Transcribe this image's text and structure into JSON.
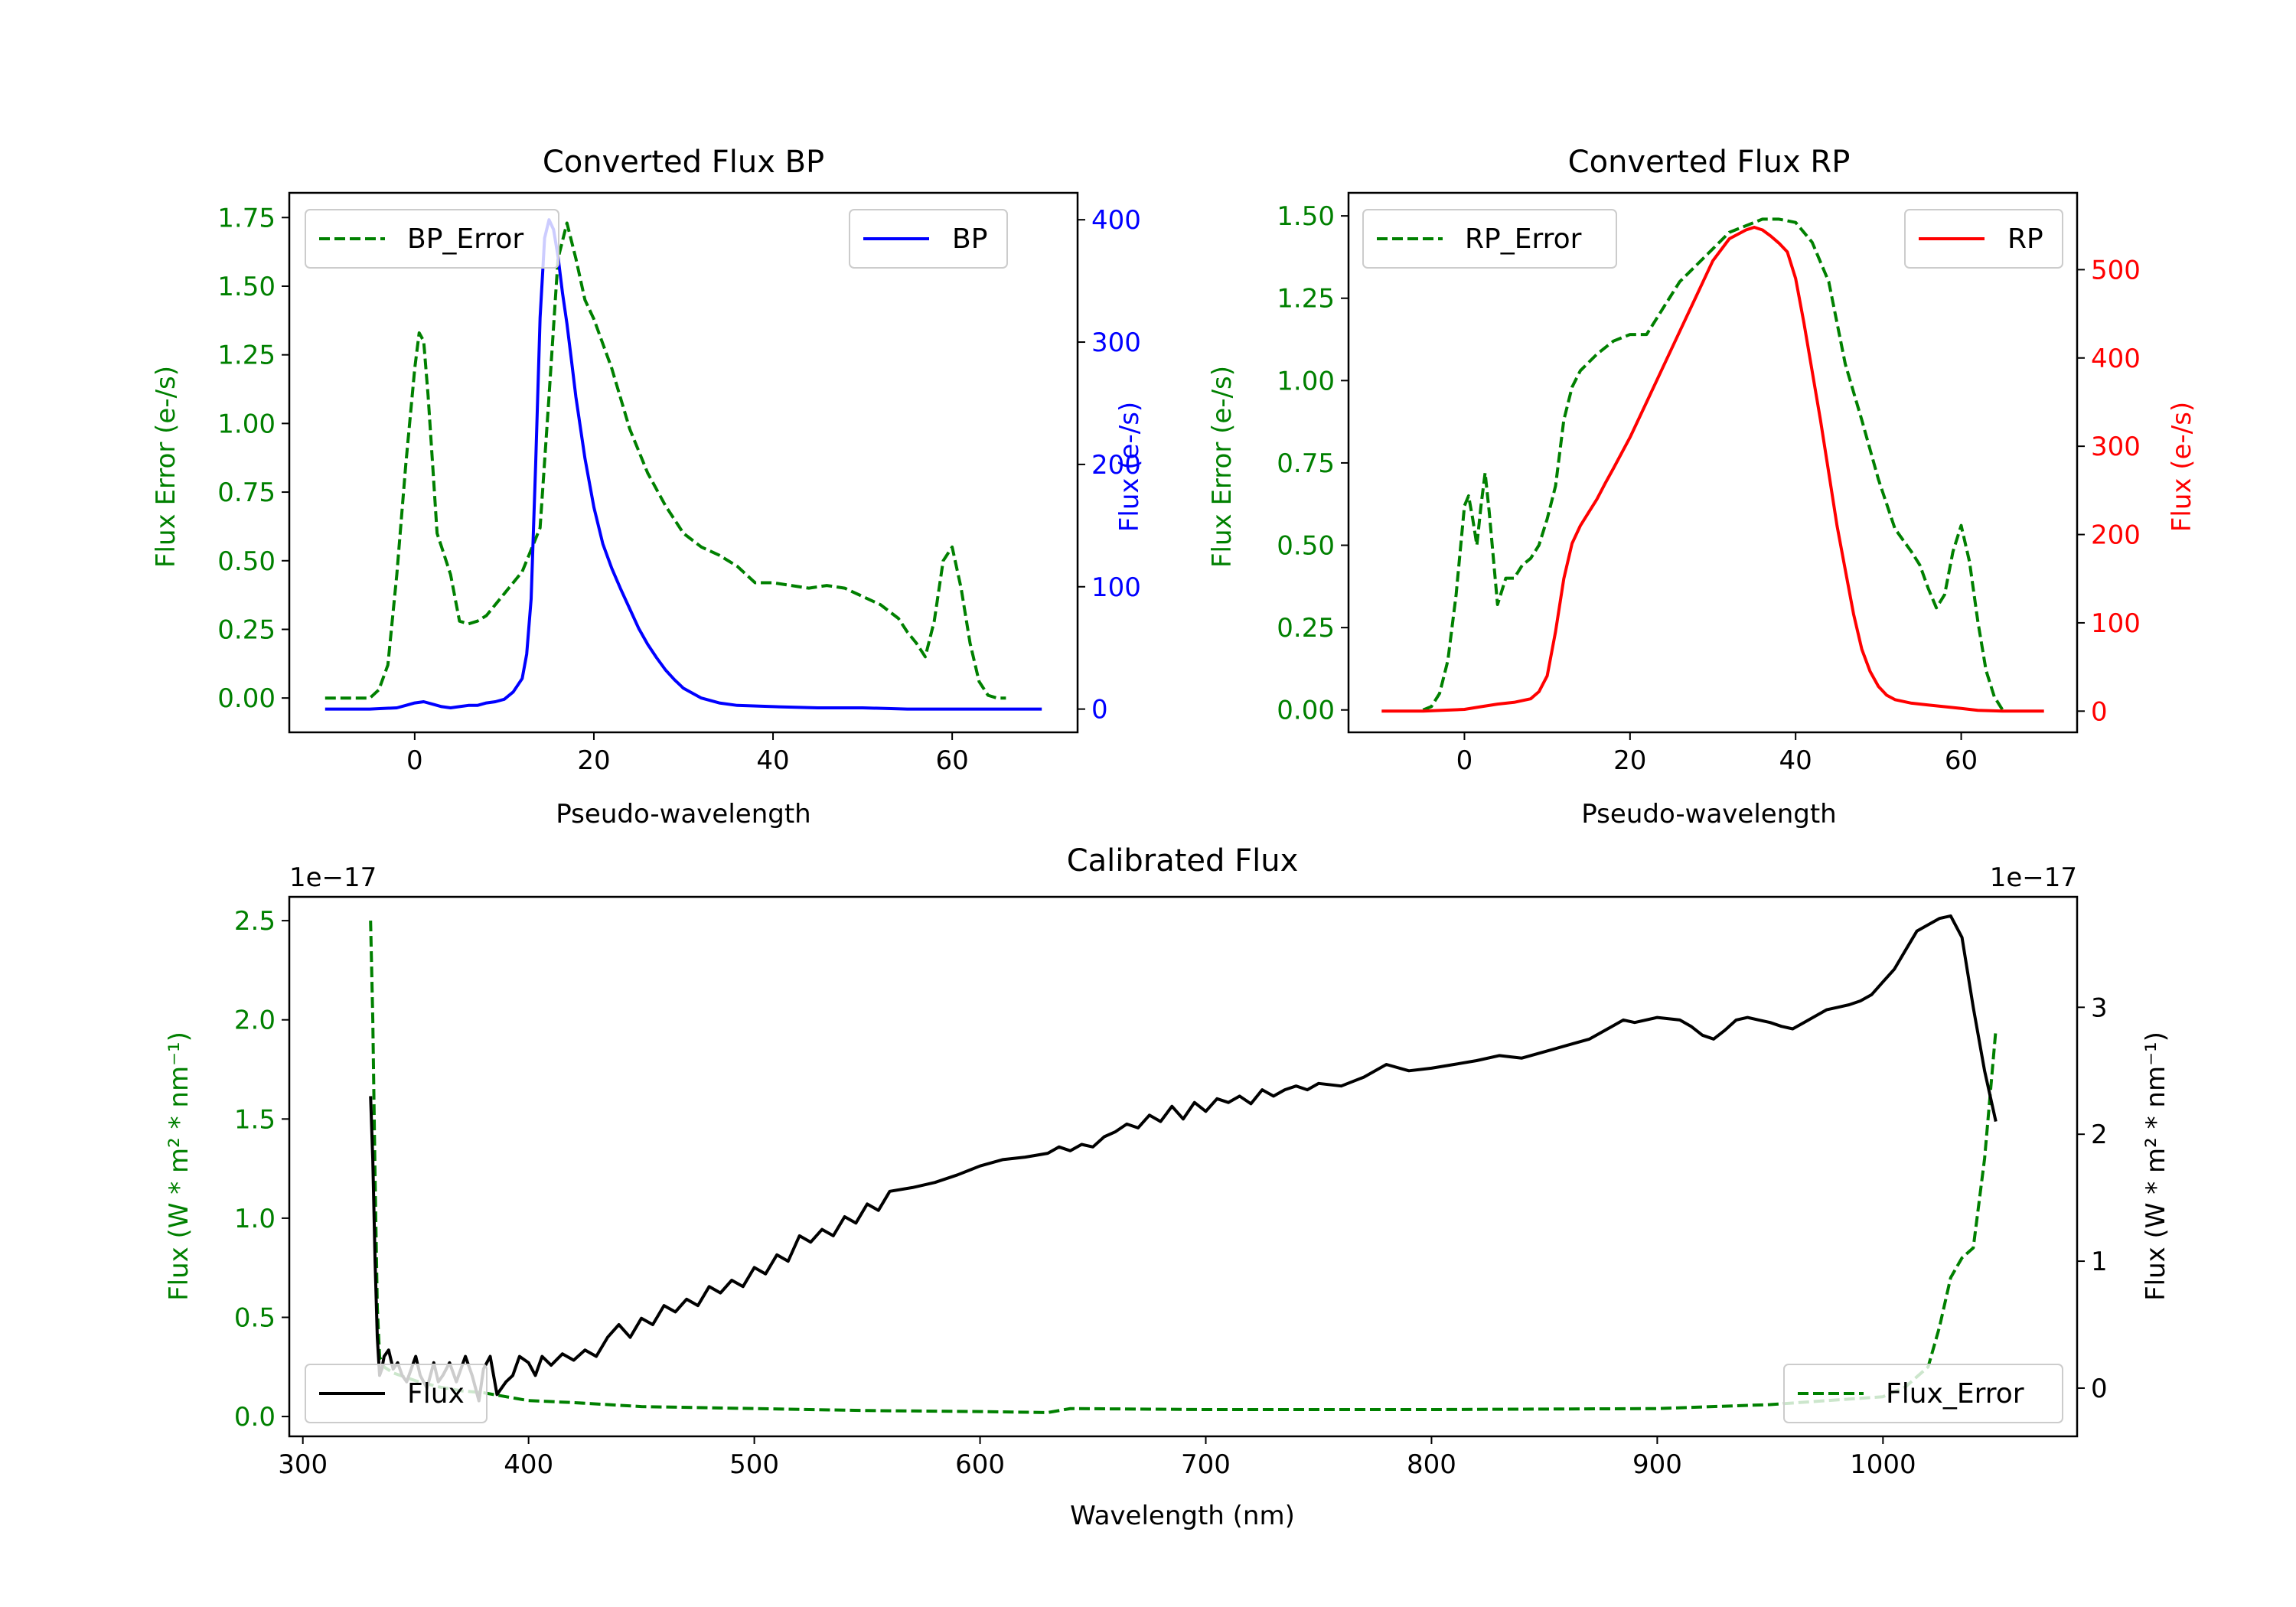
{
  "colors": {
    "green": "#008000",
    "blue": "#0000ff",
    "red": "#ff0000",
    "black": "#000000",
    "axes": "#000000"
  },
  "chart_data": [
    {
      "id": "bp",
      "type": "line",
      "title": "Converted Flux BP",
      "xlabel": "Pseudo-wavelength",
      "ylabel_left": "Flux Error (e-/s)",
      "ylabel_right": "Flux (e-/s)",
      "xlim": [
        -14,
        74
      ],
      "ylim_left": [
        -0.125,
        1.84
      ],
      "ylim_right": [
        -19,
        422
      ],
      "xticks": [
        0,
        20,
        40,
        60
      ],
      "xtick_labels": [
        "0",
        "20",
        "40",
        "60"
      ],
      "yticks_left": [
        0,
        0.25,
        0.5,
        0.75,
        1.0,
        1.25,
        1.5,
        1.75
      ],
      "ytick_labels_left": [
        "0.00",
        "0.25",
        "0.50",
        "0.75",
        "1.00",
        "1.25",
        "1.50",
        "1.75"
      ],
      "yticks_right": [
        0,
        100,
        200,
        300,
        400
      ],
      "ytick_labels_right": [
        "0",
        "100",
        "200",
        "300",
        "400"
      ],
      "legend_left": {
        "label": "BP_Error",
        "placement": "upper left"
      },
      "legend_right": {
        "label": "BP",
        "placement": "upper right"
      },
      "series": [
        {
          "name": "BP_Error",
          "axis": "left",
          "style": "dashed",
          "color": "#008000",
          "x": [
            -10,
            -5,
            -4,
            -3,
            -2,
            -1,
            0,
            0.5,
            1,
            1.5,
            2,
            2.5,
            3,
            4,
            5,
            6,
            7,
            8,
            10,
            12,
            14,
            15,
            16,
            17,
            18,
            19,
            20,
            22,
            24,
            26,
            28,
            30,
            32,
            34,
            36,
            38,
            40,
            42,
            44,
            46,
            48,
            50,
            52,
            54,
            55,
            56,
            57,
            58,
            59,
            60,
            61,
            62,
            63,
            64,
            65,
            66
          ],
          "y": [
            0.0,
            0.0,
            0.03,
            0.12,
            0.45,
            0.85,
            1.2,
            1.33,
            1.3,
            1.1,
            0.85,
            0.6,
            0.55,
            0.45,
            0.28,
            0.27,
            0.28,
            0.3,
            0.38,
            0.46,
            0.62,
            1.1,
            1.6,
            1.73,
            1.6,
            1.45,
            1.38,
            1.2,
            0.98,
            0.82,
            0.7,
            0.6,
            0.55,
            0.52,
            0.48,
            0.42,
            0.42,
            0.41,
            0.4,
            0.41,
            0.4,
            0.37,
            0.34,
            0.29,
            0.24,
            0.2,
            0.15,
            0.28,
            0.5,
            0.55,
            0.4,
            0.2,
            0.06,
            0.01,
            0.0,
            0.0
          ]
        },
        {
          "name": "BP",
          "axis": "right",
          "style": "solid",
          "color": "#0000ff",
          "x": [
            -10,
            -5,
            -2,
            -1,
            0,
            1,
            2,
            3,
            4,
            5,
            6,
            7,
            8,
            9,
            10,
            11,
            12,
            12.5,
            13,
            13.5,
            14,
            14.5,
            15,
            15.5,
            16,
            16.5,
            17,
            17.5,
            18,
            19,
            20,
            21,
            22,
            23,
            24,
            25,
            26,
            27,
            28,
            29,
            30,
            32,
            34,
            36,
            40,
            45,
            50,
            55,
            60,
            65,
            70
          ],
          "y": [
            0,
            0,
            1,
            3,
            5,
            6,
            4,
            2,
            1,
            2,
            3,
            3,
            5,
            6,
            8,
            14,
            25,
            45,
            90,
            200,
            320,
            385,
            400,
            392,
            370,
            340,
            315,
            285,
            255,
            205,
            165,
            135,
            115,
            98,
            82,
            66,
            53,
            42,
            32,
            24,
            17,
            9,
            5,
            3,
            2,
            1,
            1,
            0,
            0,
            0,
            0
          ]
        }
      ]
    },
    {
      "id": "rp",
      "type": "line",
      "title": "Converted Flux RP",
      "xlabel": "Pseudo-wavelength",
      "ylabel_left": "Flux Error (e-/s)",
      "ylabel_right": "Flux (e-/s)",
      "xlim": [
        -14,
        74
      ],
      "ylim_left": [
        -0.068,
        1.57
      ],
      "ylim_right": [
        -24,
        587
      ],
      "xticks": [
        0,
        20,
        40,
        60
      ],
      "xtick_labels": [
        "0",
        "20",
        "40",
        "60"
      ],
      "yticks_left": [
        0,
        0.25,
        0.5,
        0.75,
        1.0,
        1.25,
        1.5
      ],
      "ytick_labels_left": [
        "0.00",
        "0.25",
        "0.50",
        "0.75",
        "1.00",
        "1.25",
        "1.50"
      ],
      "yticks_right": [
        0,
        100,
        200,
        300,
        400,
        500
      ],
      "ytick_labels_right": [
        "0",
        "100",
        "200",
        "300",
        "400",
        "500"
      ],
      "legend_left": {
        "label": "RP_Error",
        "placement": "upper left"
      },
      "legend_right": {
        "label": "RP",
        "placement": "upper right"
      },
      "series": [
        {
          "name": "RP_Error",
          "axis": "left",
          "style": "dashed",
          "color": "#008000",
          "x": [
            -5,
            -4,
            -3,
            -2,
            -1,
            0,
            0.5,
            1,
            1.5,
            2,
            2.5,
            3,
            4,
            5,
            6,
            7,
            8,
            9,
            10,
            11,
            12,
            13,
            14,
            16,
            18,
            20,
            22,
            24,
            26,
            28,
            30,
            32,
            34,
            36,
            38,
            40,
            42,
            44,
            46,
            48,
            50,
            52,
            54,
            55,
            56,
            57,
            58,
            59,
            60,
            61,
            62,
            63,
            64,
            65
          ],
          "y": [
            0.0,
            0.01,
            0.05,
            0.15,
            0.35,
            0.62,
            0.65,
            0.58,
            0.5,
            0.62,
            0.72,
            0.6,
            0.32,
            0.4,
            0.4,
            0.44,
            0.46,
            0.5,
            0.58,
            0.68,
            0.88,
            0.98,
            1.03,
            1.08,
            1.12,
            1.14,
            1.14,
            1.22,
            1.3,
            1.35,
            1.4,
            1.45,
            1.47,
            1.49,
            1.49,
            1.48,
            1.42,
            1.3,
            1.05,
            0.88,
            0.7,
            0.55,
            0.48,
            0.44,
            0.37,
            0.31,
            0.35,
            0.48,
            0.56,
            0.45,
            0.27,
            0.12,
            0.04,
            0.0
          ]
        },
        {
          "name": "RP",
          "axis": "right",
          "style": "solid",
          "color": "#ff0000",
          "x": [
            -10,
            -5,
            0,
            2,
            4,
            6,
            8,
            9,
            10,
            11,
            12,
            13,
            14,
            15,
            16,
            17,
            18,
            20,
            22,
            24,
            26,
            28,
            30,
            32,
            34,
            35,
            36,
            37,
            38,
            39,
            40,
            41,
            42,
            43,
            44,
            45,
            46,
            47,
            48,
            49,
            50,
            51,
            52,
            54,
            56,
            58,
            60,
            62,
            65,
            70
          ],
          "y": [
            0,
            0,
            2,
            5,
            8,
            10,
            14,
            22,
            40,
            90,
            150,
            190,
            210,
            225,
            240,
            258,
            275,
            310,
            350,
            390,
            430,
            470,
            510,
            535,
            545,
            548,
            545,
            538,
            530,
            520,
            490,
            440,
            385,
            330,
            270,
            210,
            160,
            110,
            70,
            45,
            28,
            18,
            13,
            9,
            7,
            5,
            3,
            1,
            0,
            0
          ]
        }
      ]
    },
    {
      "id": "calibrated",
      "type": "line",
      "title": "Calibrated Flux",
      "xlabel": "Wavelength (nm)",
      "ylabel_left": "Flux (W * m² * nm⁻¹)",
      "ylabel_right": "Flux (W * m² * nm⁻¹)",
      "offset_left": "1e−17",
      "offset_right": "1e−17",
      "xlim": [
        294,
        1086
      ],
      "ylim_left": [
        -0.1,
        2.62
      ],
      "ylim_right": [
        -0.38,
        3.87
      ],
      "xticks": [
        300,
        400,
        500,
        600,
        700,
        800,
        900,
        1000
      ],
      "xtick_labels": [
        "300",
        "400",
        "500",
        "600",
        "700",
        "800",
        "900",
        "1000"
      ],
      "yticks_left": [
        0,
        0.5,
        1.0,
        1.5,
        2.0,
        2.5
      ],
      "ytick_labels_left": [
        "0.0",
        "0.5",
        "1.0",
        "1.5",
        "2.0",
        "2.5"
      ],
      "yticks_right": [
        0,
        1,
        2,
        3
      ],
      "ytick_labels_right": [
        "0",
        "1",
        "2",
        "3"
      ],
      "legend_left": {
        "label": "Flux",
        "placement": "lower left"
      },
      "legend_right": {
        "label": "Flux_Error",
        "placement": "lower right"
      },
      "series": [
        {
          "name": "Flux_Error",
          "axis": "left",
          "style": "dashed",
          "color": "#008000",
          "x": [
            330,
            331,
            332,
            333,
            334,
            336,
            340,
            350,
            360,
            370,
            380,
            390,
            400,
            420,
            450,
            500,
            550,
            600,
            630,
            640,
            700,
            800,
            900,
            950,
            1000,
            1010,
            1020,
            1025,
            1030,
            1035,
            1040,
            1045,
            1050
          ],
          "y": [
            2.5,
            2.0,
            1.2,
            0.55,
            0.3,
            0.25,
            0.22,
            0.18,
            0.15,
            0.13,
            0.12,
            0.1,
            0.08,
            0.07,
            0.05,
            0.04,
            0.03,
            0.025,
            0.02,
            0.04,
            0.035,
            0.035,
            0.04,
            0.06,
            0.1,
            0.15,
            0.25,
            0.45,
            0.7,
            0.8,
            0.85,
            1.3,
            1.95
          ]
        },
        {
          "name": "Flux",
          "axis": "right",
          "style": "solid",
          "color": "#000000",
          "x": [
            330,
            331,
            332,
            333,
            334,
            335,
            336,
            338,
            340,
            342,
            344,
            346,
            348,
            350,
            352,
            355,
            358,
            360,
            362,
            365,
            368,
            370,
            372,
            375,
            378,
            380,
            383,
            386,
            390,
            393,
            396,
            400,
            403,
            406,
            410,
            415,
            420,
            425,
            430,
            435,
            440,
            445,
            450,
            455,
            460,
            465,
            470,
            475,
            480,
            485,
            490,
            495,
            500,
            505,
            510,
            515,
            520,
            525,
            530,
            535,
            540,
            545,
            550,
            555,
            560,
            570,
            580,
            590,
            600,
            610,
            620,
            630,
            635,
            640,
            645,
            650,
            655,
            660,
            665,
            670,
            675,
            680,
            685,
            690,
            695,
            700,
            705,
            710,
            715,
            720,
            725,
            730,
            735,
            740,
            745,
            750,
            760,
            770,
            780,
            790,
            800,
            810,
            820,
            830,
            840,
            850,
            860,
            870,
            880,
            885,
            890,
            900,
            910,
            915,
            920,
            925,
            930,
            935,
            940,
            945,
            950,
            955,
            960,
            965,
            970,
            975,
            980,
            985,
            990,
            995,
            1000,
            1005,
            1010,
            1015,
            1020,
            1025,
            1030,
            1035,
            1040,
            1045,
            1050
          ],
          "y": [
            2.3,
            1.8,
            1.0,
            0.4,
            0.1,
            0.15,
            0.25,
            0.3,
            0.15,
            0.2,
            0.1,
            0.05,
            0.15,
            0.25,
            0.1,
            0.0,
            0.2,
            0.05,
            0.1,
            0.2,
            0.05,
            0.15,
            0.25,
            0.1,
            -0.1,
            0.15,
            0.25,
            -0.05,
            0.05,
            0.1,
            0.25,
            0.2,
            0.1,
            0.25,
            0.18,
            0.27,
            0.22,
            0.3,
            0.25,
            0.4,
            0.5,
            0.4,
            0.55,
            0.5,
            0.65,
            0.6,
            0.7,
            0.65,
            0.8,
            0.75,
            0.85,
            0.8,
            0.95,
            0.9,
            1.05,
            1.0,
            1.2,
            1.15,
            1.25,
            1.2,
            1.35,
            1.3,
            1.45,
            1.4,
            1.55,
            1.58,
            1.62,
            1.68,
            1.75,
            1.8,
            1.82,
            1.85,
            1.9,
            1.87,
            1.92,
            1.9,
            1.98,
            2.02,
            2.08,
            2.05,
            2.15,
            2.1,
            2.22,
            2.12,
            2.25,
            2.18,
            2.28,
            2.25,
            2.3,
            2.24,
            2.35,
            2.3,
            2.35,
            2.38,
            2.35,
            2.4,
            2.38,
            2.45,
            2.55,
            2.5,
            2.52,
            2.55,
            2.58,
            2.62,
            2.6,
            2.65,
            2.7,
            2.75,
            2.85,
            2.9,
            2.88,
            2.92,
            2.9,
            2.85,
            2.78,
            2.75,
            2.82,
            2.9,
            2.92,
            2.9,
            2.88,
            2.85,
            2.83,
            2.88,
            2.93,
            2.98,
            3.0,
            3.02,
            3.05,
            3.1,
            3.2,
            3.3,
            3.45,
            3.6,
            3.65,
            3.7,
            3.72,
            3.55,
            3.0,
            2.5,
            2.1
          ]
        }
      ]
    }
  ]
}
